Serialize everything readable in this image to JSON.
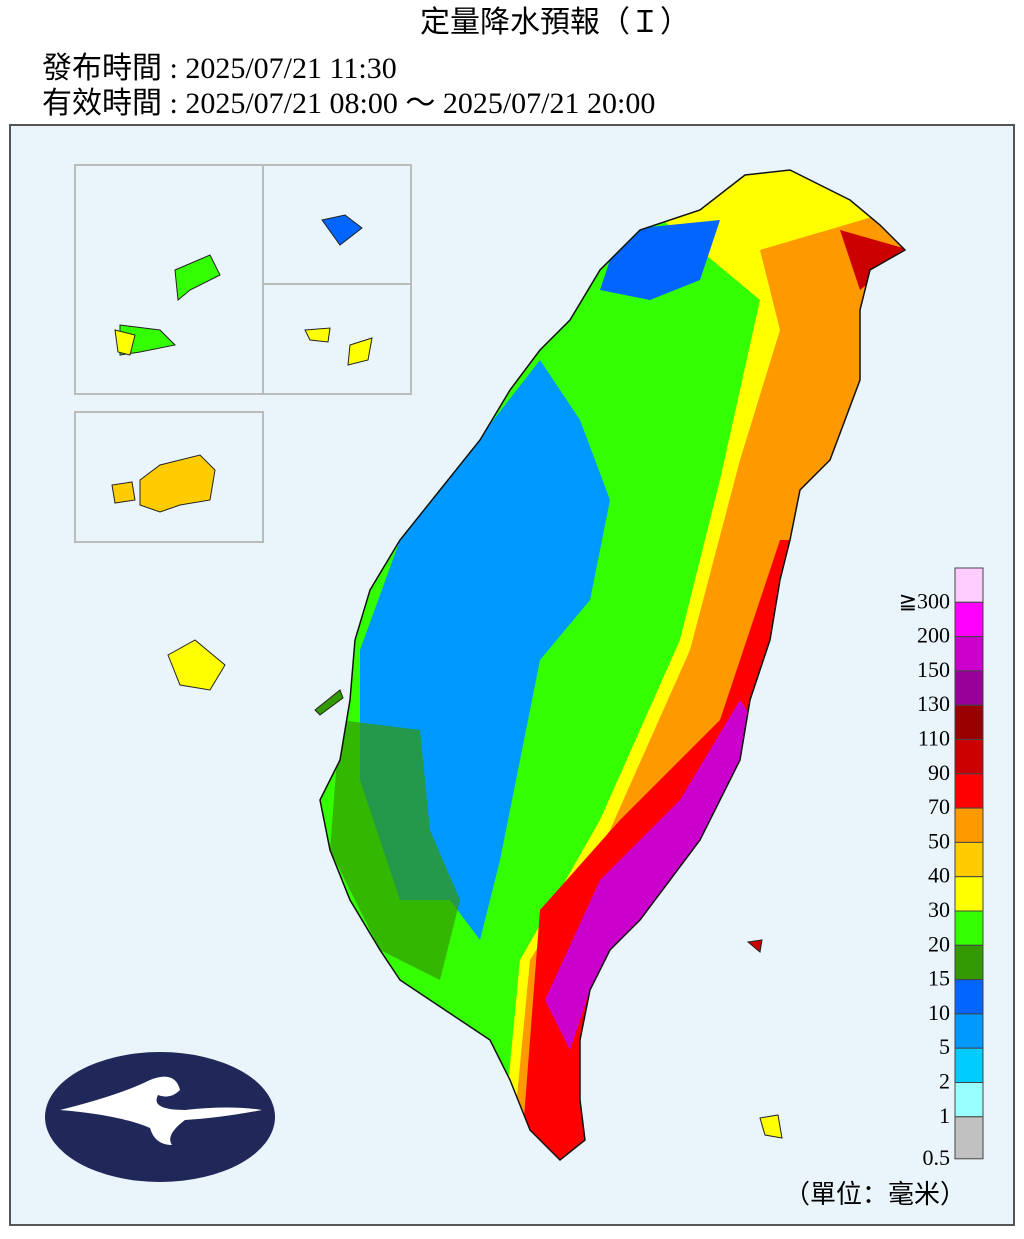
{
  "header": {
    "title": "定量降水預報（Ｉ）",
    "issued": "發布時間 : 2025/07/21 11:30",
    "valid": "有效時間 : 2025/07/21 08:00 ～ 2025/07/21 20:00"
  },
  "legend": {
    "unit": "（單位：毫米）",
    "items": [
      {
        "label": "≧300",
        "color": "#ffccff"
      },
      {
        "label": "200",
        "color": "#ff00ff"
      },
      {
        "label": "150",
        "color": "#cc00cc"
      },
      {
        "label": "130",
        "color": "#990099"
      },
      {
        "label": "110",
        "color": "#990000"
      },
      {
        "label": "90",
        "color": "#cc0000"
      },
      {
        "label": "70",
        "color": "#ff0000"
      },
      {
        "label": "50",
        "color": "#ff9900"
      },
      {
        "label": "40",
        "color": "#ffcc00"
      },
      {
        "label": "30",
        "color": "#ffff00"
      },
      {
        "label": "20",
        "color": "#33ff00"
      },
      {
        "label": "15",
        "color": "#339900"
      },
      {
        "label": "10",
        "color": "#0066ff"
      },
      {
        "label": "5",
        "color": "#0099ff"
      },
      {
        "label": "2",
        "color": "#00ccff"
      },
      {
        "label": "1",
        "color": "#99ffff"
      },
      {
        "label": "0.5",
        "color": "#c1c1c1"
      }
    ]
  }
}
